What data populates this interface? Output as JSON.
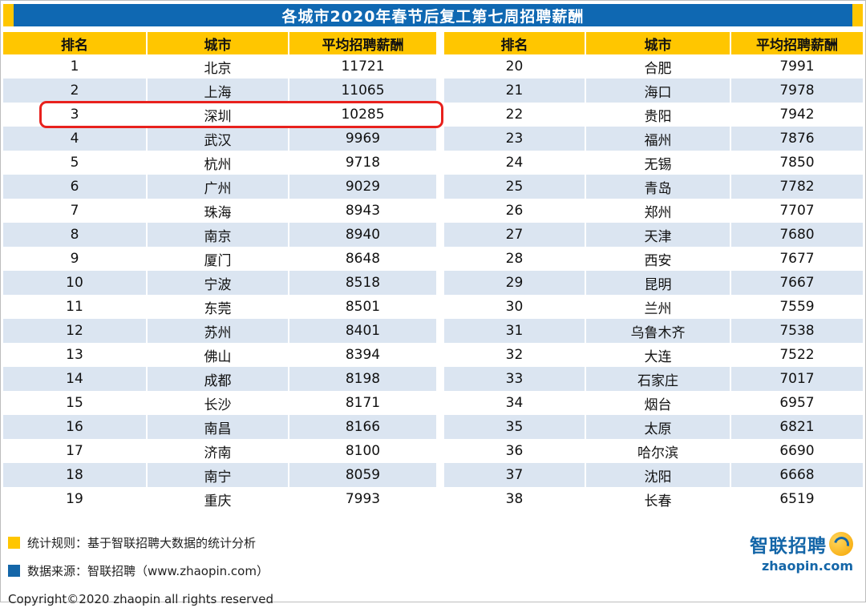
{
  "title": "各城市2020年春节后复工第七周招聘薪酬",
  "header_labels": [
    "排名",
    "城市",
    "平均招聘薪酬",
    "排名",
    "城市",
    "平均招聘薪酬"
  ],
  "chart_data": {
    "type": "table",
    "title": "各城市2020年春节后复工第七周招聘薪酬",
    "columns": [
      "排名",
      "城市",
      "平均招聘薪酬"
    ],
    "rows": [
      [
        1,
        "北京",
        11721
      ],
      [
        2,
        "上海",
        11065
      ],
      [
        3,
        "深圳",
        10285
      ],
      [
        4,
        "武汉",
        9969
      ],
      [
        5,
        "杭州",
        9718
      ],
      [
        6,
        "广州",
        9029
      ],
      [
        7,
        "珠海",
        8943
      ],
      [
        8,
        "南京",
        8940
      ],
      [
        9,
        "厦门",
        8648
      ],
      [
        10,
        "宁波",
        8518
      ],
      [
        11,
        "东莞",
        8501
      ],
      [
        12,
        "苏州",
        8401
      ],
      [
        13,
        "佛山",
        8394
      ],
      [
        14,
        "成都",
        8198
      ],
      [
        15,
        "长沙",
        8171
      ],
      [
        16,
        "南昌",
        8166
      ],
      [
        17,
        "济南",
        8100
      ],
      [
        18,
        "南宁",
        8059
      ],
      [
        19,
        "重庆",
        7993
      ],
      [
        20,
        "合肥",
        7991
      ],
      [
        21,
        "海口",
        7978
      ],
      [
        22,
        "贵阳",
        7942
      ],
      [
        23,
        "福州",
        7876
      ],
      [
        24,
        "无锡",
        7850
      ],
      [
        25,
        "青岛",
        7782
      ],
      [
        26,
        "郑州",
        7707
      ],
      [
        27,
        "天津",
        7680
      ],
      [
        28,
        "西安",
        7677
      ],
      [
        29,
        "昆明",
        7667
      ],
      [
        30,
        "兰州",
        7559
      ],
      [
        31,
        "乌鲁木齐",
        7538
      ],
      [
        32,
        "大连",
        7522
      ],
      [
        33,
        "石家庄",
        7017
      ],
      [
        34,
        "烟台",
        6957
      ],
      [
        35,
        "太原",
        6821
      ],
      [
        36,
        "哈尔滨",
        6690
      ],
      [
        37,
        "沈阳",
        6668
      ],
      [
        38,
        "长春",
        6519
      ]
    ],
    "highlighted_row": [
      3,
      "深圳",
      10285
    ],
    "layout": {
      "split": "two-column",
      "rows_per_column": 19,
      "grid": "alternating-row-shading",
      "legend_position": "bottom-left"
    }
  },
  "legend": [
    {
      "color": "#ffc600",
      "text": "统计规则：基于智联招聘大数据的统计分析"
    },
    {
      "color": "#1466a8",
      "text": "数据来源：智联招聘（www.zhaopin.com）"
    }
  ],
  "copyright": "Copyright©2020 zhaopin all rights reserved",
  "logo": {
    "brand": "智联招聘",
    "site": "zhaopin.com"
  },
  "colors": {
    "title_bg": "#0f68b2",
    "header_bg": "#ffc600",
    "row_alt": "#dbe5f1",
    "highlight_border": "#e8211d",
    "brand_blue": "#1466a8",
    "accent_yellow": "#ffc600"
  }
}
